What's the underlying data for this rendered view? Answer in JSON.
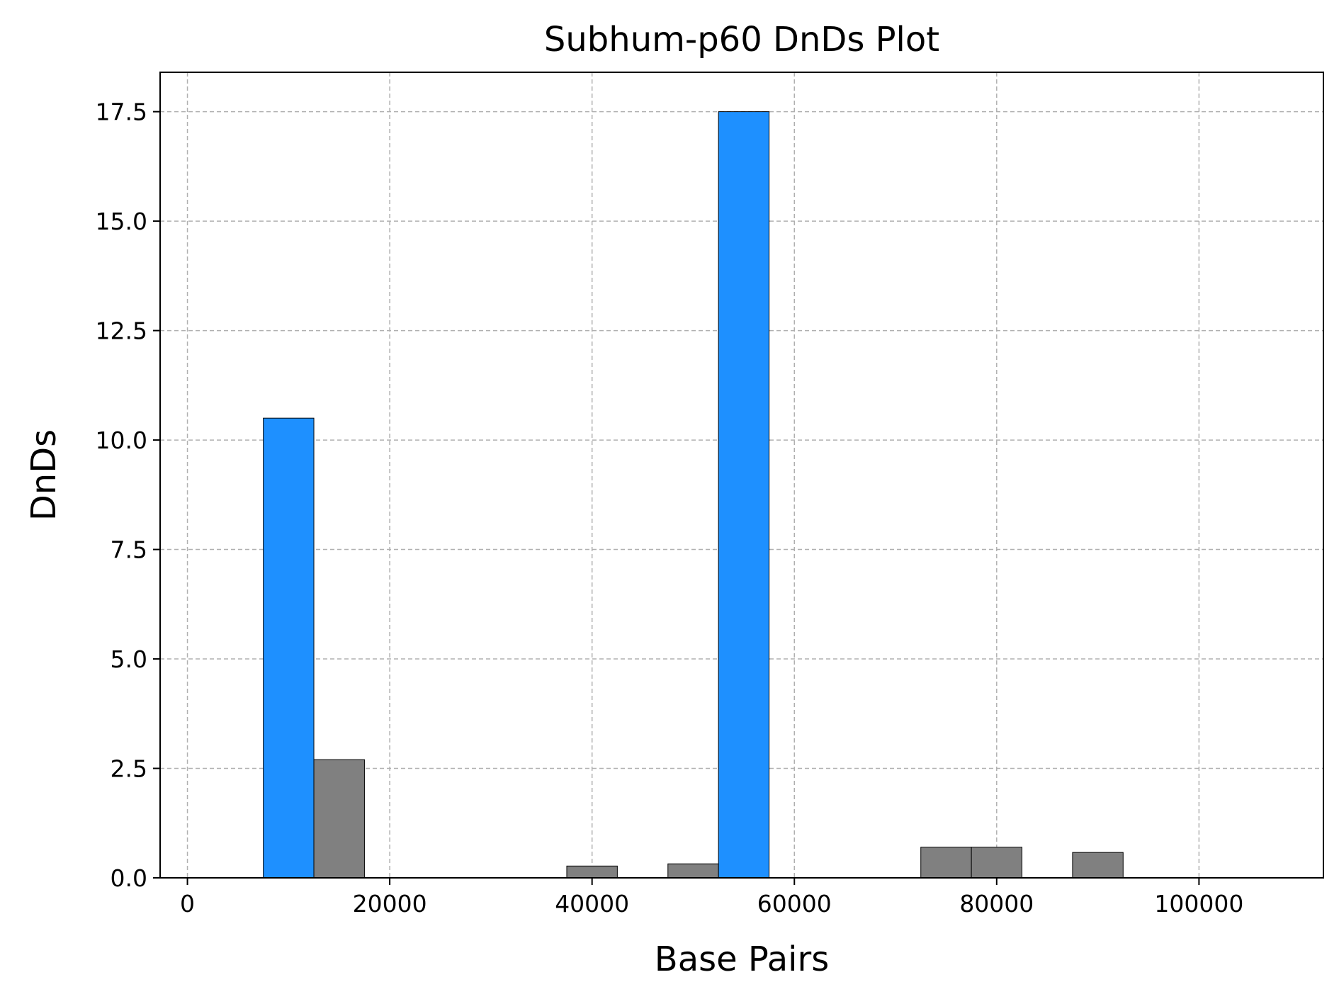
{
  "chart_data": {
    "type": "bar",
    "title": "Subhum-p60 DnDs Plot",
    "xlabel": "Base Pairs",
    "ylabel": "DnDs",
    "xlim": [
      -2700,
      112300
    ],
    "ylim": [
      0,
      18.4
    ],
    "xticks": [
      0,
      20000,
      40000,
      60000,
      80000,
      100000
    ],
    "xtick_labels": [
      "0",
      "20000",
      "40000",
      "60000",
      "80000",
      "100000"
    ],
    "yticks": [
      0.0,
      2.5,
      5.0,
      7.5,
      10.0,
      12.5,
      15.0,
      17.5
    ],
    "ytick_labels": [
      "0.0",
      "2.5",
      "5.0",
      "7.5",
      "10.0",
      "12.5",
      "15.0",
      "17.5"
    ],
    "grid": true,
    "bar_width": 5000,
    "bars": [
      {
        "x": 7500,
        "value": 10.5,
        "color": "#1e90ff"
      },
      {
        "x": 12500,
        "value": 2.7,
        "color": "#808080"
      },
      {
        "x": 37500,
        "value": 0.27,
        "color": "#808080"
      },
      {
        "x": 47500,
        "value": 0.32,
        "color": "#808080"
      },
      {
        "x": 52500,
        "value": 17.5,
        "color": "#1e90ff"
      },
      {
        "x": 72500,
        "value": 0.7,
        "color": "#808080"
      },
      {
        "x": 77500,
        "value": 0.7,
        "color": "#808080"
      },
      {
        "x": 87500,
        "value": 0.58,
        "color": "#808080"
      }
    ],
    "colors": {
      "high": "#1e90ff",
      "normal": "#808080"
    }
  }
}
